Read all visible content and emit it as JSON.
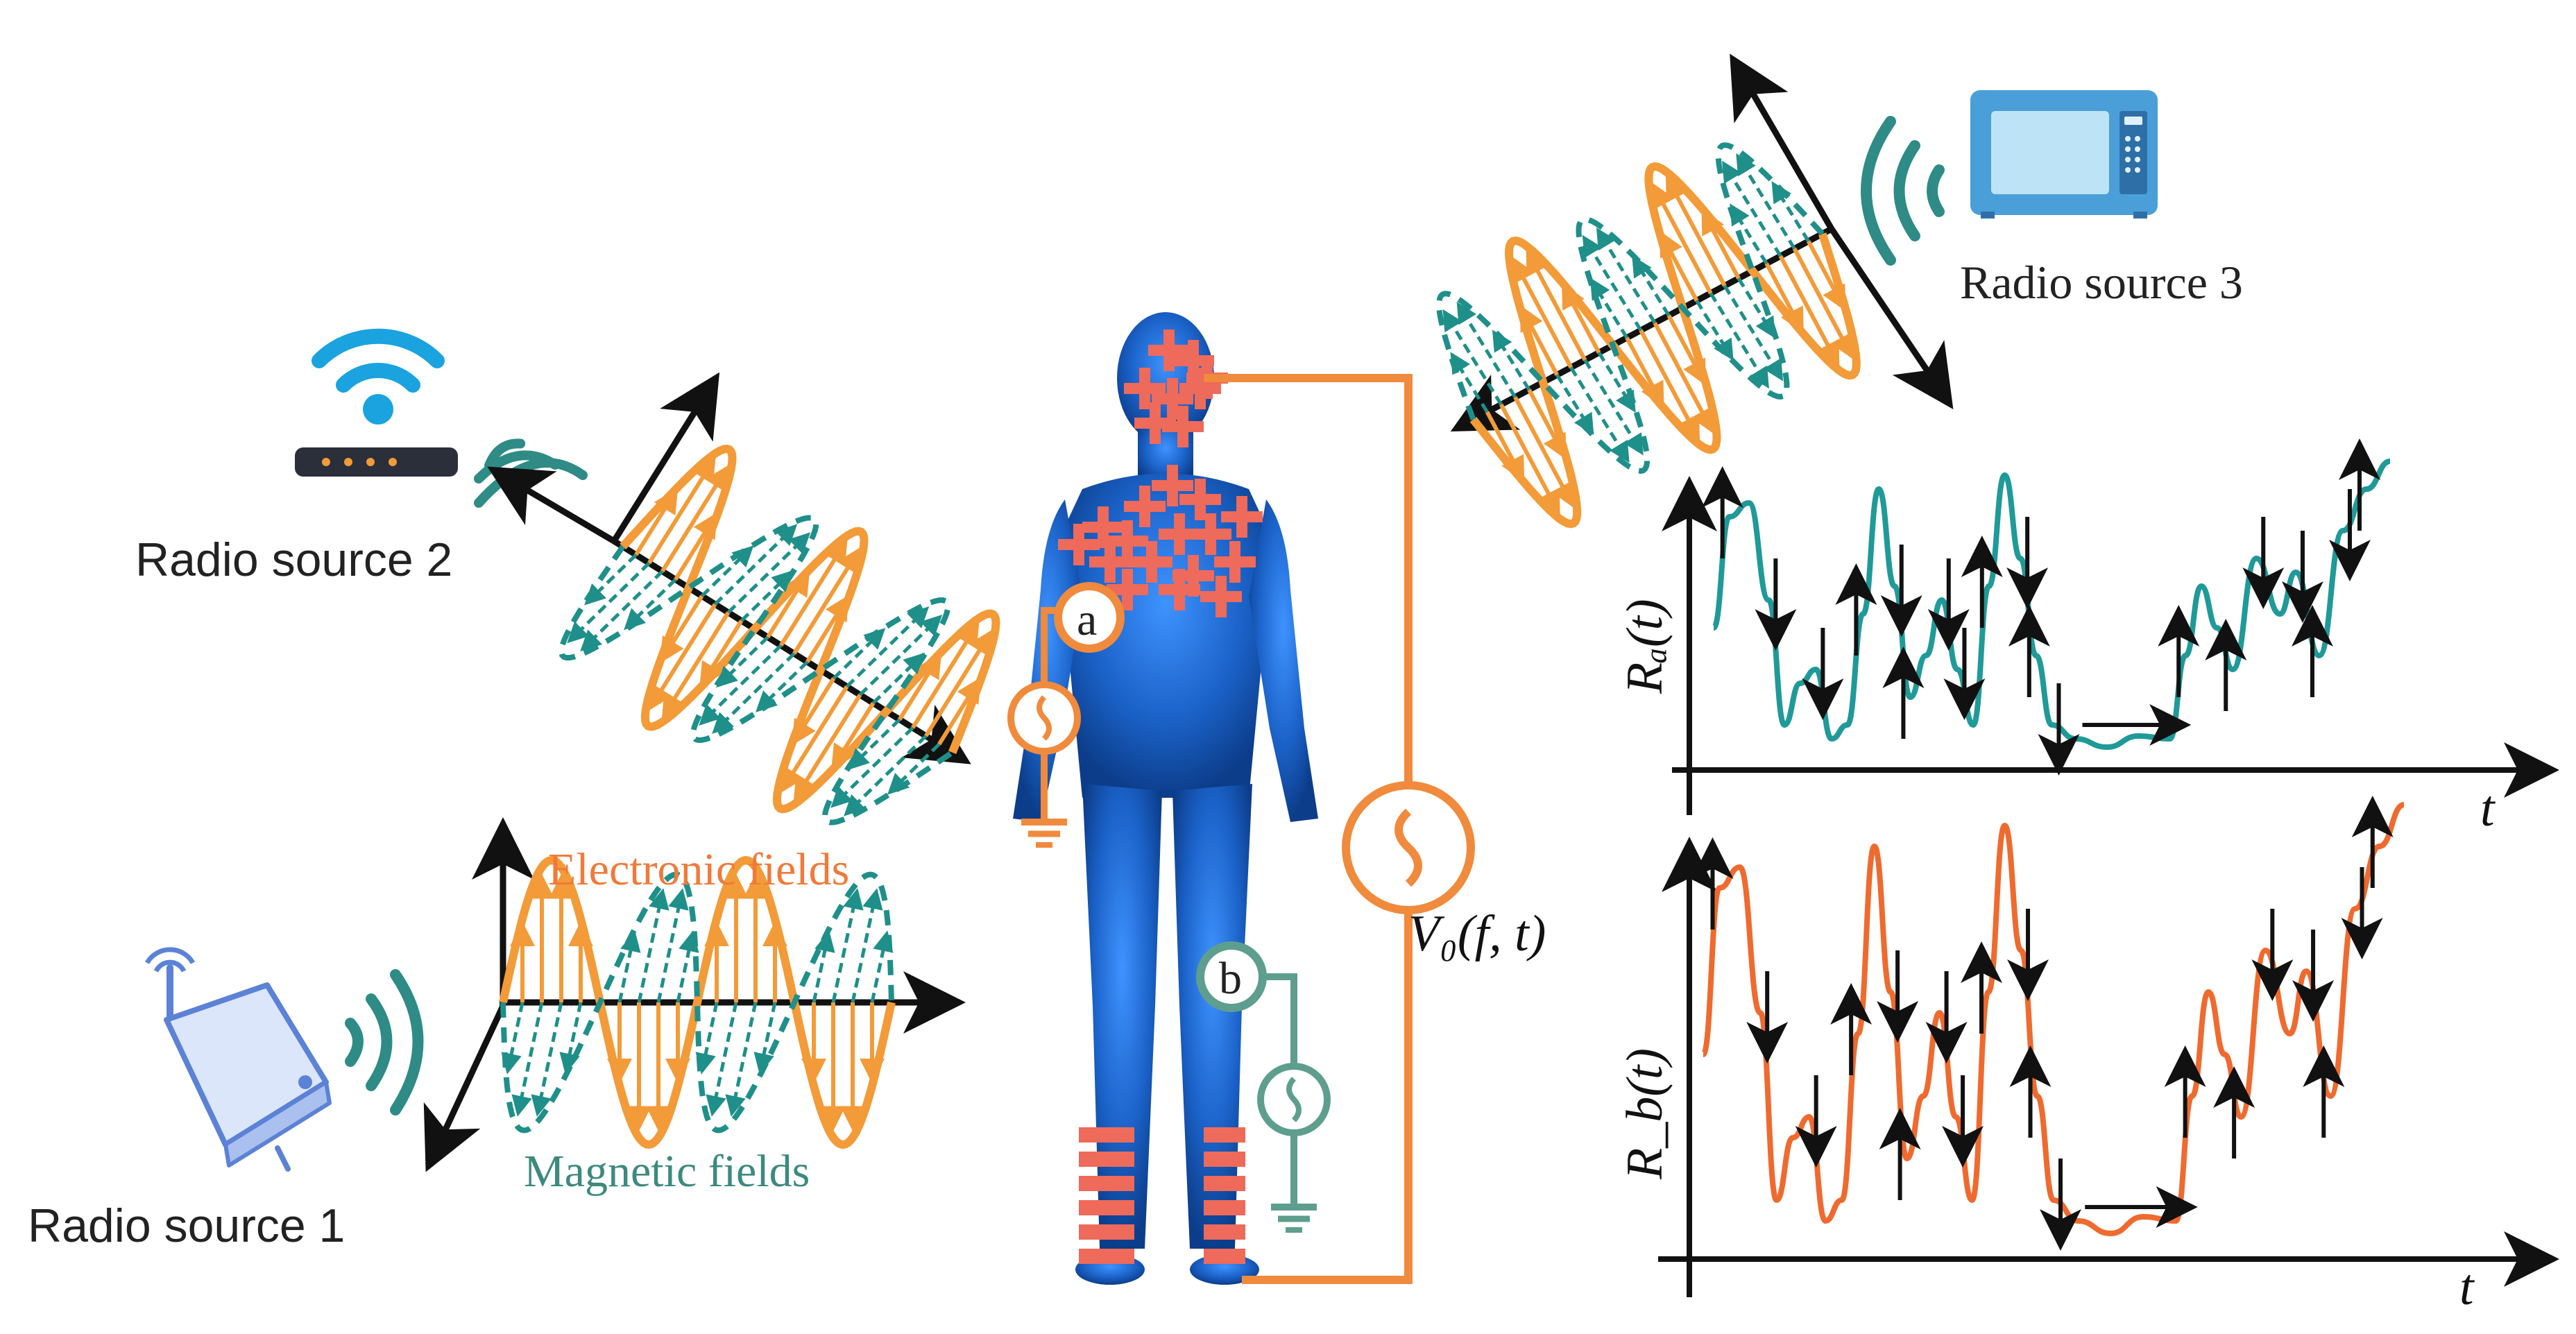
{
  "labels": {
    "radio_source_1": "Radio source 1",
    "radio_source_2": "Radio source 2",
    "radio_source_3": "Radio source 3",
    "electronic_fields": "Electronic fields",
    "magnetic_fields": "Magnetic fields",
    "voltage_source": "V₀(f, t)",
    "electrode_a": "a",
    "electrode_b": "b",
    "plot_a_ylabel": "Rₐ(t)",
    "plot_b_ylabel": "R_b(t)",
    "plot_a_xlabel": "t",
    "plot_b_xlabel": "t"
  },
  "colors": {
    "electric": "#f29b38",
    "magnetic": "#1f8f8a",
    "wire_a": "#f08a3c",
    "wire_b": "#5e9e8e",
    "charge": "#ee6a5a",
    "body": "#1b62c8",
    "trace_a": "#1f9a98",
    "trace_b": "#ef6a2e",
    "arrow": "#111111",
    "signal_arc": "#2e8b86",
    "wifi_blue": "#1aa3df",
    "microwave": "#4a9fd8"
  },
  "icons": {
    "source_1": "wireless-access-point-icon",
    "source_2": "wifi-router-icon",
    "source_3": "microwave-oven-icon"
  }
}
